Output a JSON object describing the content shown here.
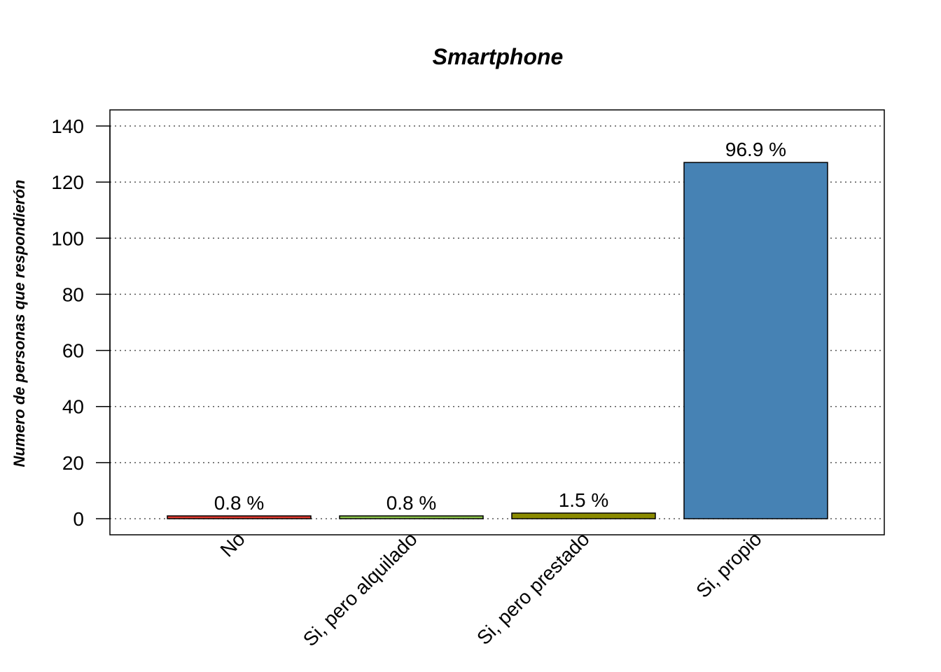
{
  "chart_data": {
    "type": "bar",
    "title": "Smartphone",
    "xlabel": "",
    "ylabel": "Numero de personas que respondierón",
    "categories": [
      "No",
      "Si, pero alquilado",
      "Si, pero prestado",
      "Si, propio"
    ],
    "values": [
      1,
      1,
      2,
      127
    ],
    "data_labels": [
      "0.8 %",
      "0.8 %",
      "1.5 %",
      "96.9 %"
    ],
    "colors": [
      "#e03c31",
      "#8bc34a",
      "#8b8b00",
      "#4682b4"
    ],
    "ylim": [
      0,
      145
    ],
    "yticks": [
      0,
      20,
      40,
      60,
      80,
      100,
      120,
      140
    ],
    "grid": true,
    "grid_axis": "y",
    "legend": "none"
  }
}
